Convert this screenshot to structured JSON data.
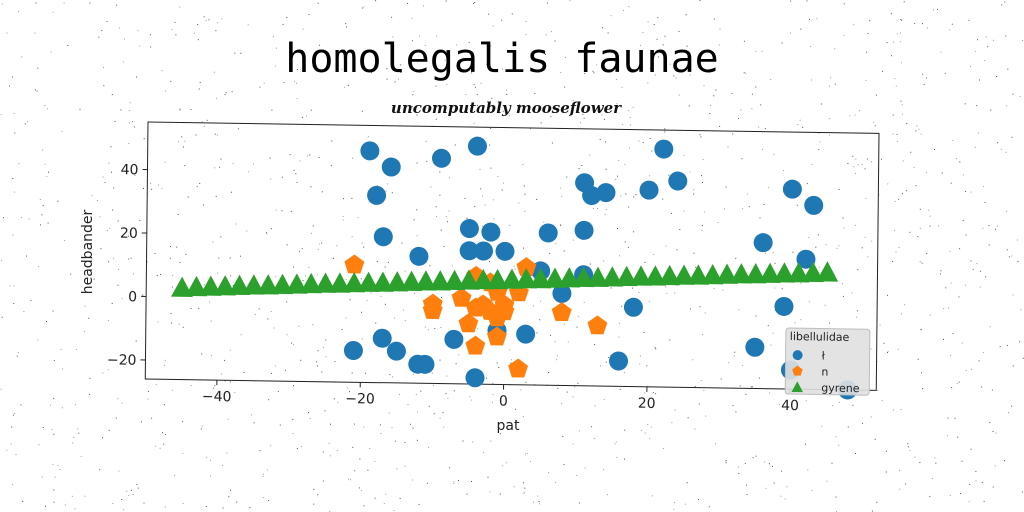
{
  "chart_data": {
    "type": "scatter",
    "title": "homolegalis faunae",
    "subtitle": "uncomputably mooseflower",
    "xlabel": "pat",
    "ylabel": "headbander",
    "xlim": [
      -50,
      52
    ],
    "ylim": [
      -26,
      55
    ],
    "xticks": [
      -40,
      -20,
      0,
      20,
      40
    ],
    "yticks": [
      -20,
      0,
      20,
      40
    ],
    "grid": false,
    "legend": {
      "title": "libellulidae",
      "placement": "bottom-right"
    },
    "series": [
      {
        "name": "ł",
        "marker": "circle",
        "color": "#1f77b4",
        "points": [
          [
            -19,
            47
          ],
          [
            -16,
            42
          ],
          [
            -18,
            33
          ],
          [
            -9,
            45
          ],
          [
            -4,
            49
          ],
          [
            -17,
            20
          ],
          [
            -12,
            14
          ],
          [
            -5,
            23
          ],
          [
            -2,
            22
          ],
          [
            -5,
            16
          ],
          [
            -3,
            16
          ],
          [
            0,
            16
          ],
          [
            6,
            22
          ],
          [
            11,
            23
          ],
          [
            11,
            38
          ],
          [
            12,
            34
          ],
          [
            14,
            35
          ],
          [
            20,
            36
          ],
          [
            22,
            49
          ],
          [
            24,
            39
          ],
          [
            36,
            20
          ],
          [
            40,
            37
          ],
          [
            43,
            32
          ],
          [
            42,
            15
          ],
          [
            5,
            10
          ],
          [
            11,
            9
          ],
          [
            8,
            3
          ],
          [
            18,
            -1
          ],
          [
            39,
            0
          ],
          [
            -7,
            -12
          ],
          [
            -1,
            -9
          ],
          [
            3,
            -10
          ],
          [
            -21,
            -16
          ],
          [
            -17,
            -12
          ],
          [
            -15,
            -16
          ],
          [
            -12,
            -20
          ],
          [
            -11,
            -20
          ],
          [
            -4,
            -24
          ],
          [
            16,
            -18
          ],
          [
            35,
            -13
          ],
          [
            40,
            -20
          ],
          [
            48,
            -26
          ]
        ]
      },
      {
        "name": "n",
        "marker": "pentagon",
        "color": "#ff7f0e",
        "points": [
          [
            -21,
            11
          ],
          [
            -10,
            -1
          ],
          [
            -10,
            -3
          ],
          [
            -5,
            -7
          ],
          [
            -4,
            -2
          ],
          [
            -3,
            -1
          ],
          [
            -2,
            -3
          ],
          [
            -1,
            -5
          ],
          [
            0,
            -3
          ],
          [
            0,
            -1
          ],
          [
            -1,
            3
          ],
          [
            -4,
            8
          ],
          [
            -2,
            6
          ],
          [
            2,
            3
          ],
          [
            3,
            11
          ],
          [
            8,
            -3
          ],
          [
            13,
            -7
          ],
          [
            -4,
            -14
          ],
          [
            -1,
            -11
          ],
          [
            2,
            -21
          ],
          [
            -6,
            1
          ]
        ]
      },
      {
        "name": "gyrene",
        "marker": "triangle",
        "color": "#2ca02c",
        "points": [
          [
            -45,
            3
          ],
          [
            -43,
            3.3
          ],
          [
            -41,
            3.5
          ],
          [
            -39,
            3.7
          ],
          [
            -37,
            3.9
          ],
          [
            -35,
            4.1
          ],
          [
            -33,
            4.2
          ],
          [
            -31,
            4.4
          ],
          [
            -29,
            4.6
          ],
          [
            -27,
            4.8
          ],
          [
            -25,
            5
          ],
          [
            -23,
            5.1
          ],
          [
            -21,
            5.3
          ],
          [
            -19,
            5.5
          ],
          [
            -17,
            5.6
          ],
          [
            -15,
            5.8
          ],
          [
            -13,
            6
          ],
          [
            -11,
            6.2
          ],
          [
            -9,
            6.3
          ],
          [
            -7,
            6.5
          ],
          [
            -5,
            6.7
          ],
          [
            -3,
            6.9
          ],
          [
            -1,
            7
          ],
          [
            1,
            7.2
          ],
          [
            3,
            7.4
          ],
          [
            5,
            7.5
          ],
          [
            7,
            7.7
          ],
          [
            9,
            7.9
          ],
          [
            11,
            8.1
          ],
          [
            13,
            8.2
          ],
          [
            15,
            8.4
          ],
          [
            17,
            8.6
          ],
          [
            19,
            8.8
          ],
          [
            21,
            8.9
          ],
          [
            23,
            9.1
          ],
          [
            25,
            9.3
          ],
          [
            27,
            9.4
          ],
          [
            29,
            9.6
          ],
          [
            31,
            9.8
          ],
          [
            33,
            10
          ],
          [
            35,
            10.1
          ],
          [
            37,
            10.3
          ],
          [
            39,
            10.5
          ],
          [
            41,
            10.6
          ],
          [
            43,
            10.8
          ],
          [
            45,
            11
          ]
        ]
      }
    ]
  }
}
